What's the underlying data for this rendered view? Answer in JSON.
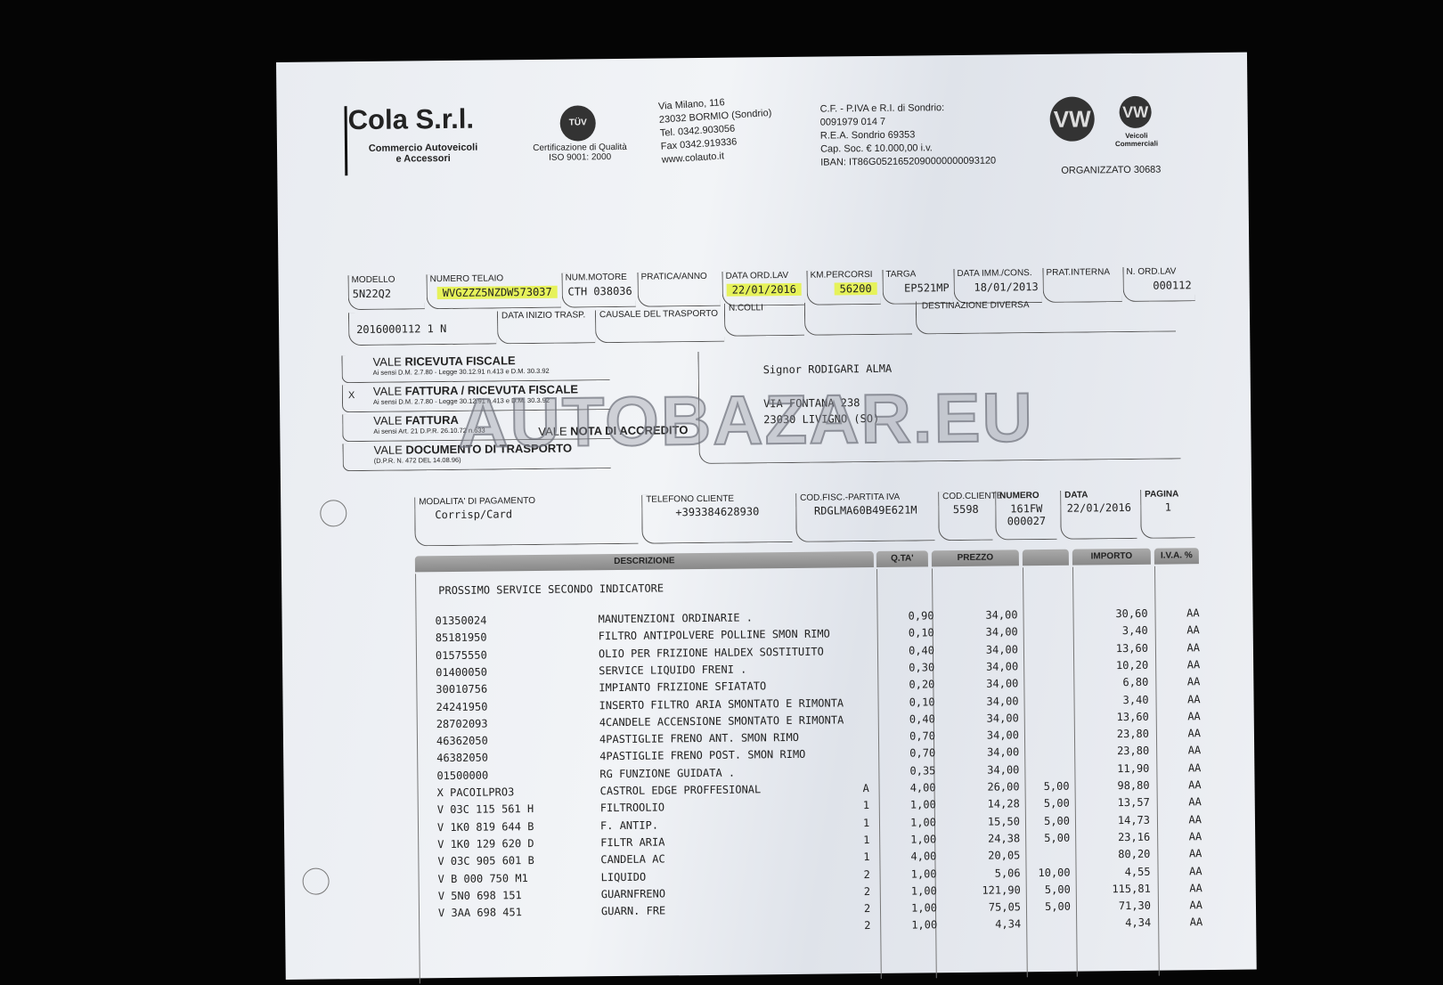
{
  "company": {
    "name": "Cola S.r.l.",
    "tagline1": "Commercio Autoveicoli",
    "tagline2": "e Accessori",
    "cert1": "Certificazione di Qualità",
    "cert2": "ISO 9001: 2000",
    "cert_logo": "TÜV",
    "address": [
      "Via Milano, 116",
      "23032 BORMIO (Sondrio)",
      "Tel. 0342.903056",
      "Fax 0342.919336",
      "www.colauto.it"
    ],
    "legal": [
      "C.F. - P.IVA e R.I. di Sondrio:",
      "0091979 014 7",
      "R.E.A. Sondrio 69353",
      "Cap. Soc. € 10.000,00 i.v.",
      "IBAN: IT86G0521652090000000093120"
    ],
    "brand_logo": "VW",
    "brand_sub1": "Veicoli",
    "brand_sub2": "Commerciali",
    "organizzato": "ORGANIZZATO 30683"
  },
  "vehicle": {
    "fields": [
      {
        "label": "MODELLO",
        "value": "5N22Q2"
      },
      {
        "label": "NUMERO TELAIO",
        "value": "WVGZZZ5NZDW573037"
      },
      {
        "label": "NUM.MOTORE",
        "value": "CTH 038036"
      },
      {
        "label": "PRATICA/ANNO",
        "value": ""
      },
      {
        "label": "DATA ORD.LAV",
        "value": "22/01/2016"
      },
      {
        "label": "KM.PERCORSI",
        "value": "56200"
      },
      {
        "label": "TARGA",
        "value": "EP521MP"
      },
      {
        "label": "DATA IMM./CONS.",
        "value": "18/01/2013"
      },
      {
        "label": "PRAT.INTERNA",
        "value": ""
      },
      {
        "label": "N. ORD.LAV",
        "value": "000112"
      }
    ],
    "doc_no": "2016000112 1 N",
    "data_inizio": "DATA INIZIO TRASP.",
    "causale": "CAUSALE DEL TRASPORTO",
    "ncolli": "N.COLLI",
    "destinazione": "DESTINAZIONE DIVERSA"
  },
  "doc_types": [
    {
      "mark": "",
      "title_a": "VALE ",
      "title_b": "RICEVUTA FISCALE",
      "note": "Ai sensi D.M. 2.7.80 - Legge 30.12.91 n.413 e D.M. 30.3.92"
    },
    {
      "mark": "X",
      "title_a": "VALE ",
      "title_b": "FATTURA / RICEVUTA FISCALE",
      "note": "Ai sensi D.M. 2.7.80 - Legge 30.12.91 n.413 e D.M. 30.3.92"
    },
    {
      "mark": "",
      "title_a": "VALE ",
      "title_b": "FATTURA",
      "note": "Ai sensi Art. 21 D.P.R. 26.10.72 n.633"
    },
    {
      "mark": "",
      "title_a": "VALE ",
      "title_b": "DOCUMENTO DI TRASPORTO",
      "note": "(D.P.R. N. 472 DEL 14.08.96)"
    }
  ],
  "nota": {
    "a": "VALE ",
    "b": "NOTA DI ACCREDITO"
  },
  "customer": {
    "name": "Signor RODIGARI ALMA",
    "street": "VIA FONTANA 238",
    "city": "23030 LIVIGNO (SO)"
  },
  "watermark": "AUTOBAZAR.EU",
  "payment": [
    {
      "label": "MODALITA' DI PAGAMENTO",
      "value": "Corrisp/Card"
    },
    {
      "label": "TELEFONO CLIENTE",
      "value": "+393384628930"
    },
    {
      "label": "COD.FISC.-PARTITA IVA",
      "value": "RDGLMA60B49E621M"
    },
    {
      "label": "COD.CLIENTE",
      "value": "5598"
    },
    {
      "label": "NUMERO",
      "value": "161FW 000027"
    },
    {
      "label": "DATA",
      "value": "22/01/2016"
    },
    {
      "label": "PAGINA",
      "value": "1"
    }
  ],
  "table": {
    "headers": {
      "desc": "DESCRIZIONE",
      "qty": "Q.TA'",
      "price": "PREZZO",
      "disc": "",
      "amount": "IMPORTO",
      "iva": "I.V.A. %"
    },
    "note": "PROSSIMO SERVICE SECONDO INDICATORE",
    "rows": [
      [
        "01350024",
        "MANUTENZIONI ORDINARIE .",
        "",
        "0,90",
        "34,00",
        "",
        "30,60",
        "AA"
      ],
      [
        "85181950",
        "FILTRO ANTIPOLVERE POLLINE SMON RIMO",
        "",
        "0,10",
        "34,00",
        "",
        "3,40",
        "AA"
      ],
      [
        "01575550",
        "OLIO PER FRIZIONE HALDEX SOSTITUITO",
        "",
        "0,40",
        "34,00",
        "",
        "13,60",
        "AA"
      ],
      [
        "01400050",
        "SERVICE LIQUIDO FRENI .",
        "",
        "0,30",
        "34,00",
        "",
        "10,20",
        "AA"
      ],
      [
        "30010756",
        "IMPIANTO FRIZIONE SFIATATO",
        "",
        "0,20",
        "34,00",
        "",
        "6,80",
        "AA"
      ],
      [
        "24241950",
        "INSERTO FILTRO ARIA SMONTATO E RIMONTA",
        "",
        "0,10",
        "34,00",
        "",
        "3,40",
        "AA"
      ],
      [
        "28702093",
        "4CANDELE ACCENSIONE SMONTATO E RIMONTA",
        "",
        "0,40",
        "34,00",
        "",
        "13,60",
        "AA"
      ],
      [
        "46362050",
        "4PASTIGLIE FRENO ANT. SMON RIMO",
        "",
        "0,70",
        "34,00",
        "",
        "23,80",
        "AA"
      ],
      [
        "46382050",
        "4PASTIGLIE FRENO POST. SMON RIMO",
        "",
        "0,70",
        "34,00",
        "",
        "23,80",
        "AA"
      ],
      [
        "01500000",
        "RG FUNZIONE GUIDATA .",
        "",
        "0,35",
        "34,00",
        "",
        "11,90",
        "AA"
      ],
      [
        "X PACOILPRO3",
        "CASTROL EDGE PROFFESIONAL",
        "A",
        "4,00",
        "26,00",
        "5,00",
        "98,80",
        "AA"
      ],
      [
        "V 03C 115 561 H",
        "FILTROOLIO",
        "1",
        "1,00",
        "14,28",
        "5,00",
        "13,57",
        "AA"
      ],
      [
        "V 1K0 819 644 B",
        "F. ANTIP.",
        "1",
        "1,00",
        "15,50",
        "5,00",
        "14,73",
        "AA"
      ],
      [
        "V 1K0 129 620 D",
        "FILTR ARIA",
        "1",
        "1,00",
        "24,38",
        "5,00",
        "23,16",
        "AA"
      ],
      [
        "V 03C 905 601 B",
        "CANDELA AC",
        "1",
        "4,00",
        "20,05",
        "",
        "80,20",
        "AA"
      ],
      [
        "V B   000 750 M1",
        "LIQUIDO",
        "2",
        "1,00",
        "5,06",
        "10,00",
        "4,55",
        "AA"
      ],
      [
        "V 5N0 698 151",
        "GUARNFRENO",
        "2",
        "1,00",
        "121,90",
        "5,00",
        "115,81",
        "AA"
      ],
      [
        "V 3AA 698 451",
        "GUARN. FRE",
        "2",
        "1,00",
        "75,05",
        "5,00",
        "71,30",
        "AA"
      ],
      [
        "",
        "",
        "2",
        "1,00",
        "4,34",
        "",
        "4,34",
        "AA"
      ]
    ]
  }
}
